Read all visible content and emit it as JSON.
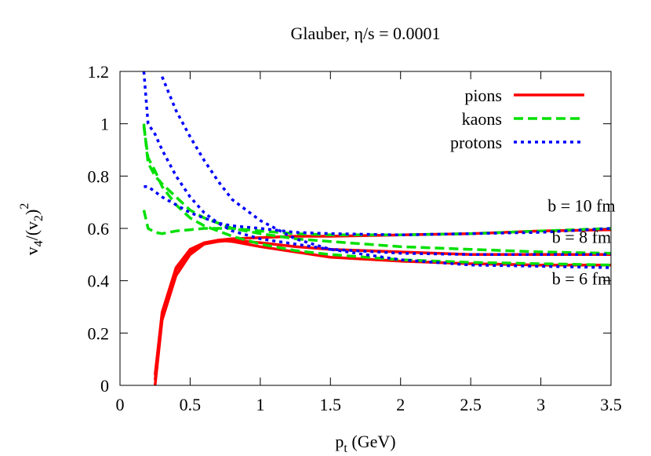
{
  "chart_data": {
    "type": "line",
    "title": "Glauber, η/s = 0.0001",
    "xlabel": [
      "p",
      "t",
      " (GeV)"
    ],
    "ylabel": [
      "v",
      "4",
      "/(v",
      "2",
      ")",
      "2"
    ],
    "xlim": [
      0,
      3.5
    ],
    "ylim": [
      0,
      1.2
    ],
    "xticks": [
      0,
      0.5,
      1,
      1.5,
      2,
      2.5,
      3,
      3.5
    ],
    "yticks": [
      0,
      0.2,
      0.4,
      0.6,
      0.8,
      1,
      1.2
    ],
    "legend": "top-right",
    "x": [
      0.17,
      0.2,
      0.25,
      0.3,
      0.4,
      0.5,
      0.6,
      0.7,
      0.8,
      1,
      1.25,
      1.5,
      2,
      2.5,
      3,
      3.5
    ],
    "series": [
      {
        "name": "pions",
        "color": "#ff0000",
        "dash": "solid",
        "curves": [
          {
            "values": [
              null,
              null,
              0,
              0.25,
              0.42,
              0.5,
              0.54,
              0.555,
              0.56,
              0.565,
              0.57,
              0.57,
              0.575,
              0.58,
              0.59,
              0.595
            ]
          },
          {
            "values": [
              null,
              null,
              0.02,
              0.27,
              0.44,
              0.51,
              0.54,
              0.55,
              0.555,
              0.545,
              0.53,
              0.52,
              0.51,
              0.5,
              0.5,
              0.5
            ]
          },
          {
            "values": [
              null,
              null,
              0.04,
              0.28,
              0.45,
              0.52,
              0.545,
              0.555,
              0.55,
              0.53,
              0.51,
              0.49,
              0.475,
              0.465,
              0.46,
              0.46
            ]
          }
        ]
      },
      {
        "name": "kaons",
        "color": "#00e000",
        "dash": "dashed",
        "curves": [
          {
            "values": [
              0.67,
              0.6,
              0.585,
              0.58,
              0.59,
              0.595,
              0.6,
              0.6,
              0.6,
              0.59,
              0.58,
              0.575,
              0.575,
              0.58,
              0.59,
              0.6
            ]
          },
          {
            "values": [
              1.0,
              0.85,
              0.8,
              0.77,
              0.72,
              0.67,
              0.64,
              0.62,
              0.6,
              0.58,
              0.56,
              0.55,
              0.53,
              0.52,
              0.51,
              0.505
            ]
          },
          {
            "values": [
              0.99,
              0.87,
              0.82,
              0.76,
              0.69,
              0.64,
              0.61,
              0.59,
              0.57,
              0.54,
              0.515,
              0.5,
              0.48,
              0.47,
              0.465,
              0.46
            ]
          }
        ]
      },
      {
        "name": "protons",
        "color": "#0000ff",
        "dash": "dotted",
        "curves": [
          {
            "values": [
              0.76,
              0.76,
              0.74,
              0.72,
              0.69,
              0.66,
              0.64,
              0.62,
              0.61,
              0.6,
              0.585,
              0.58,
              0.575,
              0.58,
              0.585,
              0.6
            ]
          },
          {
            "values": [
              1.2,
              1.0,
              0.96,
              0.9,
              0.8,
              0.72,
              0.66,
              0.62,
              0.59,
              0.56,
              0.54,
              0.52,
              0.505,
              0.5,
              0.5,
              0.5
            ]
          },
          {
            "values": [
              null,
              null,
              null,
              1.18,
              1.05,
              0.95,
              0.86,
              0.78,
              0.71,
              0.63,
              0.56,
              0.52,
              0.48,
              0.46,
              0.455,
              0.45
            ]
          }
        ]
      }
    ],
    "annotations": [
      "b = 10 fm",
      "b = 8 fm",
      "b = 6 fm"
    ]
  }
}
